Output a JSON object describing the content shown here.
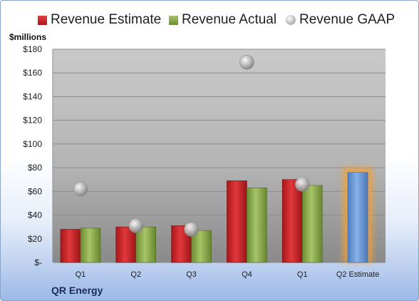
{
  "brand": "QR Energy",
  "legend": [
    {
      "label": "Revenue Estimate",
      "swatch": "red"
    },
    {
      "label": "Revenue Actual",
      "swatch": "green"
    },
    {
      "label": "Revenue GAAP",
      "swatch": "gaap"
    }
  ],
  "colors": {
    "estimate": "#c0202a",
    "actual": "#8fae4c",
    "gaap": "#aaaaaa",
    "estimate_highlight": "#6e9bd6",
    "highlight_glow": "#f5a030"
  },
  "chart_data": {
    "type": "bar",
    "unit_label": "$millions",
    "categories": [
      "Q1",
      "Q2",
      "Q3",
      "Q4",
      "Q1",
      "Q2 Estimate"
    ],
    "series": [
      {
        "name": "Revenue Estimate",
        "values": [
          28,
          30,
          31,
          69,
          70,
          76
        ]
      },
      {
        "name": "Revenue Actual",
        "values": [
          29,
          30,
          27,
          63,
          65,
          null
        ]
      },
      {
        "name": "Revenue GAAP",
        "values": [
          62,
          31,
          28,
          169,
          66,
          null
        ]
      }
    ],
    "highlight_index": 5,
    "ylim": [
      0,
      180
    ],
    "yticks": [
      0,
      20,
      40,
      60,
      80,
      100,
      120,
      140,
      160,
      180
    ],
    "ytick_labels": [
      "$-",
      "$20",
      "$40",
      "$60",
      "$80",
      "$100",
      "$120",
      "$140",
      "$160",
      "$180"
    ],
    "grid": true,
    "legend_position": "top"
  }
}
